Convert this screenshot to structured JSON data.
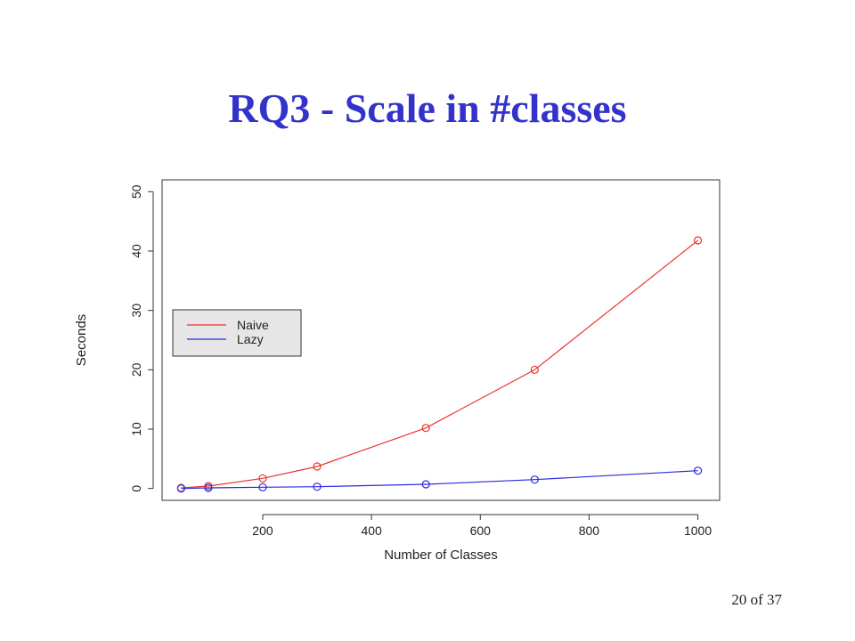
{
  "slide": {
    "title": "RQ3 - Scale in #classes",
    "page_number": "20 of 37"
  },
  "chart_data": {
    "type": "line",
    "title": "",
    "xlabel": "Number of Classes",
    "ylabel": "Seconds",
    "x": [
      50,
      100,
      200,
      300,
      500,
      700,
      1000
    ],
    "xlim": [
      15,
      1040
    ],
    "ylim": [
      -2,
      52
    ],
    "x_ticks": [
      200,
      400,
      600,
      800,
      1000
    ],
    "y_ticks": [
      0,
      10,
      20,
      30,
      40,
      50
    ],
    "grid": false,
    "legend_position": "left-middle",
    "series": [
      {
        "name": "Naive",
        "color": "#e8352e",
        "values": [
          0.1,
          0.4,
          1.7,
          3.7,
          10.2,
          20.0,
          41.8
        ]
      },
      {
        "name": "Lazy",
        "color": "#2a2ae0",
        "values": [
          0.0,
          0.1,
          0.2,
          0.3,
          0.7,
          1.5,
          3.0
        ]
      }
    ]
  }
}
